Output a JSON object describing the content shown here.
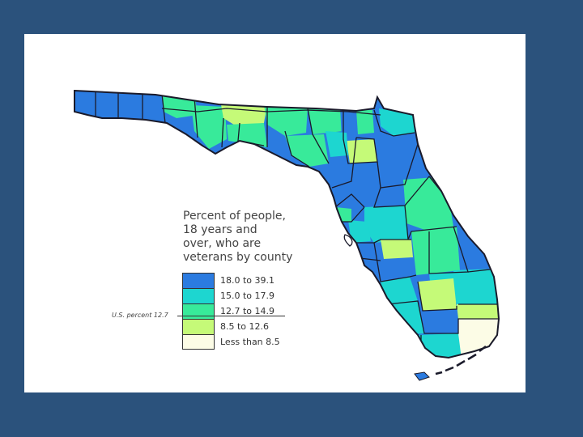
{
  "legend": {
    "title_lines": [
      "Percent of people,",
      "18 years and",
      "over, who are",
      "veterans by county"
    ],
    "items": [
      {
        "label": "18.0 to 39.1",
        "color": "#2b7be0"
      },
      {
        "label": "15.0 to 17.9",
        "color": "#1dd6d0"
      },
      {
        "label": "12.7 to 14.9",
        "color": "#38ea9a"
      },
      {
        "label": "8.5 to 12.6",
        "color": "#c5fa78"
      },
      {
        "label": "Less than 8.5",
        "color": "#fcfce6"
      }
    ],
    "us_percent_label": "U.S. percent 12.7"
  },
  "map": {
    "region": "Florida",
    "border_color": "#1a1a2a"
  }
}
